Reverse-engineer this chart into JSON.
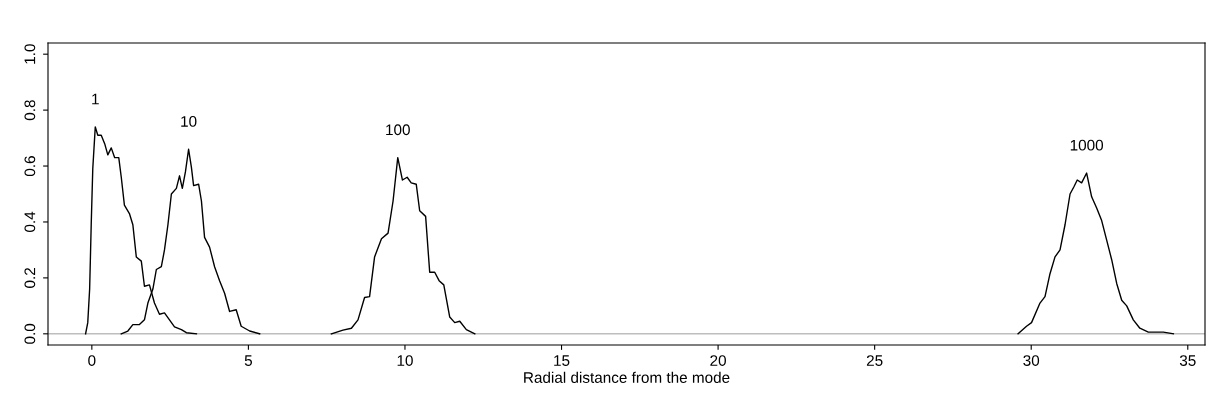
{
  "chart_data": {
    "type": "line",
    "xlabel": "Radial distance from the mode",
    "xlim": [
      -1.4,
      35.55
    ],
    "ylim": [
      -0.04,
      1.04
    ],
    "xticks": [
      0,
      5,
      10,
      15,
      20,
      25,
      30,
      35
    ],
    "yticks": [
      {
        "value": 0,
        "label": "0.0"
      },
      {
        "value": 0.2,
        "label": "0.2"
      },
      {
        "value": 0.4,
        "label": "0.4"
      },
      {
        "value": 0.6,
        "label": "0.6"
      },
      {
        "value": 0.8,
        "label": "0.8"
      },
      {
        "value": 1,
        "label": "1.0"
      }
    ],
    "grid": false,
    "legend": false,
    "marker": "none",
    "line_style": "solid",
    "ref_lines": [
      {
        "axis": "y",
        "value": 0,
        "color": "#bebebe",
        "line_style": "solid"
      }
    ],
    "series": [
      {
        "name": "1",
        "color": "#000000",
        "x": [
          -0.2,
          -0.13,
          -0.07,
          -0.02,
          0.03,
          0.11,
          0.19,
          0.3,
          0.41,
          0.51,
          0.62,
          0.73,
          0.86,
          0.94,
          1.04,
          1.2,
          1.31,
          1.42,
          1.58,
          1.68,
          1.84,
          2.0,
          2.16,
          2.32,
          2.48,
          2.64,
          2.86,
          3.02,
          3.34
        ],
        "values": [
          0,
          0.04,
          0.16,
          0.39,
          0.59,
          0.74,
          0.71,
          0.71,
          0.68,
          0.64,
          0.665,
          0.63,
          0.63,
          0.56,
          0.46,
          0.43,
          0.39,
          0.275,
          0.26,
          0.17,
          0.175,
          0.11,
          0.07,
          0.075,
          0.05,
          0.025,
          0.015,
          0.004,
          0
        ]
      },
      {
        "name": "10",
        "color": "#000000",
        "x": [
          0.94,
          1.15,
          1.31,
          1.52,
          1.68,
          1.79,
          1.95,
          2.06,
          2.22,
          2.32,
          2.43,
          2.54,
          2.7,
          2.8,
          2.89,
          2.99,
          3.09,
          3.18,
          3.25,
          3.41,
          3.5,
          3.6,
          3.76,
          3.92,
          4.08,
          4.24,
          4.4,
          4.61,
          4.77,
          5.04,
          5.36
        ],
        "values": [
          0,
          0.01,
          0.033,
          0.033,
          0.05,
          0.11,
          0.16,
          0.23,
          0.24,
          0.3,
          0.39,
          0.5,
          0.52,
          0.565,
          0.52,
          0.58,
          0.66,
          0.595,
          0.53,
          0.535,
          0.475,
          0.345,
          0.31,
          0.24,
          0.19,
          0.145,
          0.08,
          0.086,
          0.027,
          0.01,
          0
        ]
      },
      {
        "name": "100",
        "color": "#000000",
        "x": [
          7.65,
          8.02,
          8.29,
          8.5,
          8.71,
          8.87,
          9.03,
          9.25,
          9.46,
          9.62,
          9.77,
          9.92,
          10.07,
          10.2,
          10.36,
          10.47,
          10.66,
          10.79,
          10.95,
          11.09,
          11.24,
          11.43,
          11.59,
          11.75,
          11.96,
          12.23
        ],
        "values": [
          0,
          0.013,
          0.02,
          0.05,
          0.13,
          0.133,
          0.275,
          0.34,
          0.36,
          0.475,
          0.63,
          0.55,
          0.56,
          0.54,
          0.535,
          0.44,
          0.42,
          0.22,
          0.22,
          0.19,
          0.175,
          0.06,
          0.04,
          0.045,
          0.015,
          0
        ]
      },
      {
        "name": "1000",
        "color": "#000000",
        "x": [
          29.58,
          29.85,
          30.01,
          30.28,
          30.44,
          30.6,
          30.76,
          30.92,
          31.08,
          31.24,
          31.36,
          31.47,
          31.61,
          31.77,
          31.93,
          32.09,
          32.25,
          32.41,
          32.57,
          32.73,
          32.89,
          33.05,
          33.26,
          33.47,
          33.74,
          34.22,
          34.54
        ],
        "values": [
          0,
          0.027,
          0.04,
          0.11,
          0.133,
          0.215,
          0.275,
          0.3,
          0.39,
          0.5,
          0.525,
          0.55,
          0.54,
          0.575,
          0.49,
          0.45,
          0.405,
          0.335,
          0.265,
          0.18,
          0.12,
          0.1,
          0.05,
          0.02,
          0.006,
          0.006,
          0
        ]
      }
    ]
  }
}
